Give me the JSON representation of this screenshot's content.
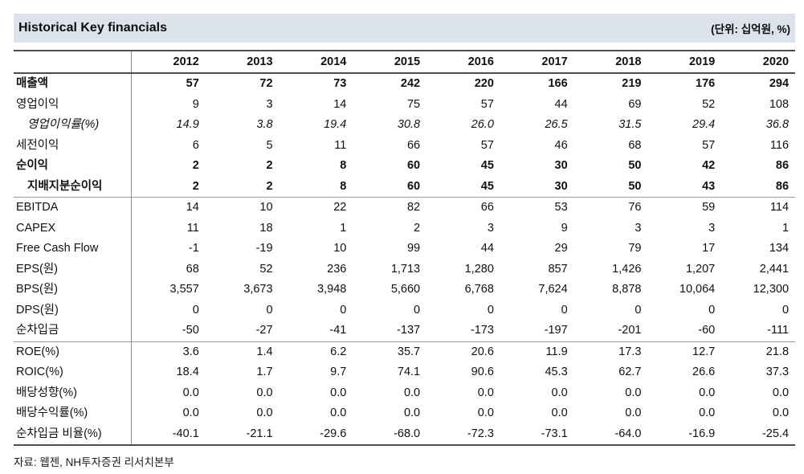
{
  "header": {
    "title": "Historical Key financials",
    "unit_note": "(단위: 십억원, %)"
  },
  "table": {
    "year_columns": [
      "2012",
      "2013",
      "2014",
      "2015",
      "2016",
      "2017",
      "2018",
      "2019",
      "2020"
    ],
    "rows": [
      {
        "label": "매출액",
        "bold": true,
        "italic": false,
        "indent": false,
        "sep": false,
        "values": [
          "57",
          "72",
          "73",
          "242",
          "220",
          "166",
          "219",
          "176",
          "294"
        ]
      },
      {
        "label": "영업이익",
        "bold": false,
        "italic": false,
        "indent": false,
        "sep": false,
        "values": [
          "9",
          "3",
          "14",
          "75",
          "57",
          "44",
          "69",
          "52",
          "108"
        ]
      },
      {
        "label": "영업이익률(%)",
        "bold": false,
        "italic": true,
        "indent": true,
        "sep": false,
        "values": [
          "14.9",
          "3.8",
          "19.4",
          "30.8",
          "26.0",
          "26.5",
          "31.5",
          "29.4",
          "36.8"
        ]
      },
      {
        "label": "세전이익",
        "bold": false,
        "italic": false,
        "indent": false,
        "sep": false,
        "values": [
          "6",
          "5",
          "11",
          "66",
          "57",
          "46",
          "68",
          "57",
          "116"
        ]
      },
      {
        "label": "순이익",
        "bold": true,
        "italic": false,
        "indent": false,
        "sep": false,
        "values": [
          "2",
          "2",
          "8",
          "60",
          "45",
          "30",
          "50",
          "42",
          "86"
        ]
      },
      {
        "label": "지배지분순이익",
        "bold": true,
        "italic": false,
        "indent": true,
        "sep": false,
        "values": [
          "2",
          "2",
          "8",
          "60",
          "45",
          "30",
          "50",
          "43",
          "86"
        ]
      },
      {
        "label": "EBITDA",
        "bold": false,
        "italic": false,
        "indent": false,
        "sep": true,
        "values": [
          "14",
          "10",
          "22",
          "82",
          "66",
          "53",
          "76",
          "59",
          "114"
        ]
      },
      {
        "label": "CAPEX",
        "bold": false,
        "italic": false,
        "indent": false,
        "sep": false,
        "values": [
          "11",
          "18",
          "1",
          "2",
          "3",
          "9",
          "3",
          "3",
          "1"
        ]
      },
      {
        "label": "Free Cash Flow",
        "bold": false,
        "italic": false,
        "indent": false,
        "sep": false,
        "values": [
          "-1",
          "-19",
          "10",
          "99",
          "44",
          "29",
          "79",
          "17",
          "134"
        ]
      },
      {
        "label": "EPS(원)",
        "bold": false,
        "italic": false,
        "indent": false,
        "sep": false,
        "values": [
          "68",
          "52",
          "236",
          "1,713",
          "1,280",
          "857",
          "1,426",
          "1,207",
          "2,441"
        ]
      },
      {
        "label": "BPS(원)",
        "bold": false,
        "italic": false,
        "indent": false,
        "sep": false,
        "values": [
          "3,557",
          "3,673",
          "3,948",
          "5,660",
          "6,768",
          "7,624",
          "8,878",
          "10,064",
          "12,300"
        ]
      },
      {
        "label": "DPS(원)",
        "bold": false,
        "italic": false,
        "indent": false,
        "sep": false,
        "values": [
          "0",
          "0",
          "0",
          "0",
          "0",
          "0",
          "0",
          "0",
          "0"
        ]
      },
      {
        "label": "순차입금",
        "bold": false,
        "italic": false,
        "indent": false,
        "sep": false,
        "values": [
          "-50",
          "-27",
          "-41",
          "-137",
          "-173",
          "-197",
          "-201",
          "-60",
          "-111"
        ]
      },
      {
        "label": "ROE(%)",
        "bold": false,
        "italic": false,
        "indent": false,
        "sep": true,
        "values": [
          "3.6",
          "1.4",
          "6.2",
          "35.7",
          "20.6",
          "11.9",
          "17.3",
          "12.7",
          "21.8"
        ]
      },
      {
        "label": "ROIC(%)",
        "bold": false,
        "italic": false,
        "indent": false,
        "sep": false,
        "values": [
          "18.4",
          "1.7",
          "9.7",
          "74.1",
          "90.6",
          "45.3",
          "62.7",
          "26.6",
          "37.3"
        ]
      },
      {
        "label": "배당성향(%)",
        "bold": false,
        "italic": false,
        "indent": false,
        "sep": false,
        "values": [
          "0.0",
          "0.0",
          "0.0",
          "0.0",
          "0.0",
          "0.0",
          "0.0",
          "0.0",
          "0.0"
        ]
      },
      {
        "label": "배당수익률(%)",
        "bold": false,
        "italic": false,
        "indent": false,
        "sep": false,
        "values": [
          "0.0",
          "0.0",
          "0.0",
          "0.0",
          "0.0",
          "0.0",
          "0.0",
          "0.0",
          "0.0"
        ]
      },
      {
        "label": "순차입금 비율(%)",
        "bold": false,
        "italic": false,
        "indent": false,
        "sep": false,
        "values": [
          "-40.1",
          "-21.1",
          "-29.6",
          "-68.0",
          "-72.3",
          "-73.1",
          "-64.0",
          "-16.9",
          "-25.4"
        ]
      }
    ]
  },
  "footer": {
    "source": "자료: 웹젠, NH투자증권 리서치본부"
  },
  "colors": {
    "titlebar_bg": "#dde3ec",
    "rule_dark": "#4d4d4d",
    "rule_light": "#999999",
    "text": "#111111"
  }
}
